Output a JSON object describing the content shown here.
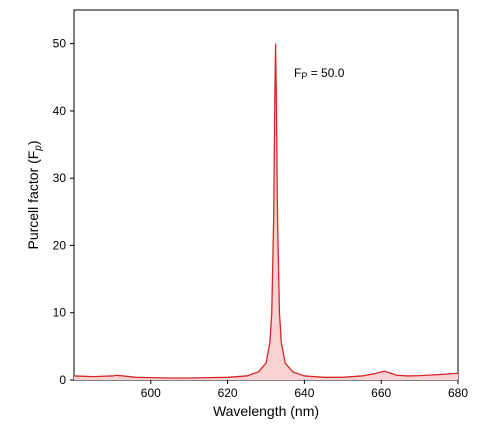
{
  "chart_data": {
    "type": "line",
    "xlabel": "Wavelength (nm)",
    "ylabel": {
      "text": "Purcell factor (F",
      "subscript": "p",
      "end": ")"
    },
    "annotation": {
      "text": "F",
      "subscript": "P",
      "rest": " = 50.0"
    },
    "xlim": [
      580,
      680
    ],
    "xticks": [
      600,
      620,
      640,
      660,
      680
    ],
    "ylim": [
      0,
      55
    ],
    "yticks": [
      0,
      10,
      20,
      30,
      40,
      50
    ],
    "color": "#d62728",
    "fill": "#f9d3d4",
    "x": [
      580,
      585,
      590,
      591,
      593,
      596,
      600,
      605,
      610,
      615,
      620,
      625,
      628,
      630,
      631,
      631.5,
      632,
      632.3,
      632.5,
      632.7,
      633,
      633.5,
      634,
      635,
      637,
      640,
      645,
      650,
      655,
      658,
      660,
      661,
      662,
      664,
      667,
      670,
      675,
      680
    ],
    "values": [
      0.6,
      0.5,
      0.6,
      0.7,
      0.6,
      0.4,
      0.35,
      0.3,
      0.3,
      0.35,
      0.4,
      0.6,
      1.2,
      2.5,
      5.5,
      10,
      24,
      42,
      50,
      42,
      24,
      10,
      5.5,
      2.5,
      1.2,
      0.6,
      0.4,
      0.4,
      0.6,
      0.9,
      1.2,
      1.3,
      1.1,
      0.7,
      0.6,
      0.65,
      0.8,
      1.0
    ]
  }
}
